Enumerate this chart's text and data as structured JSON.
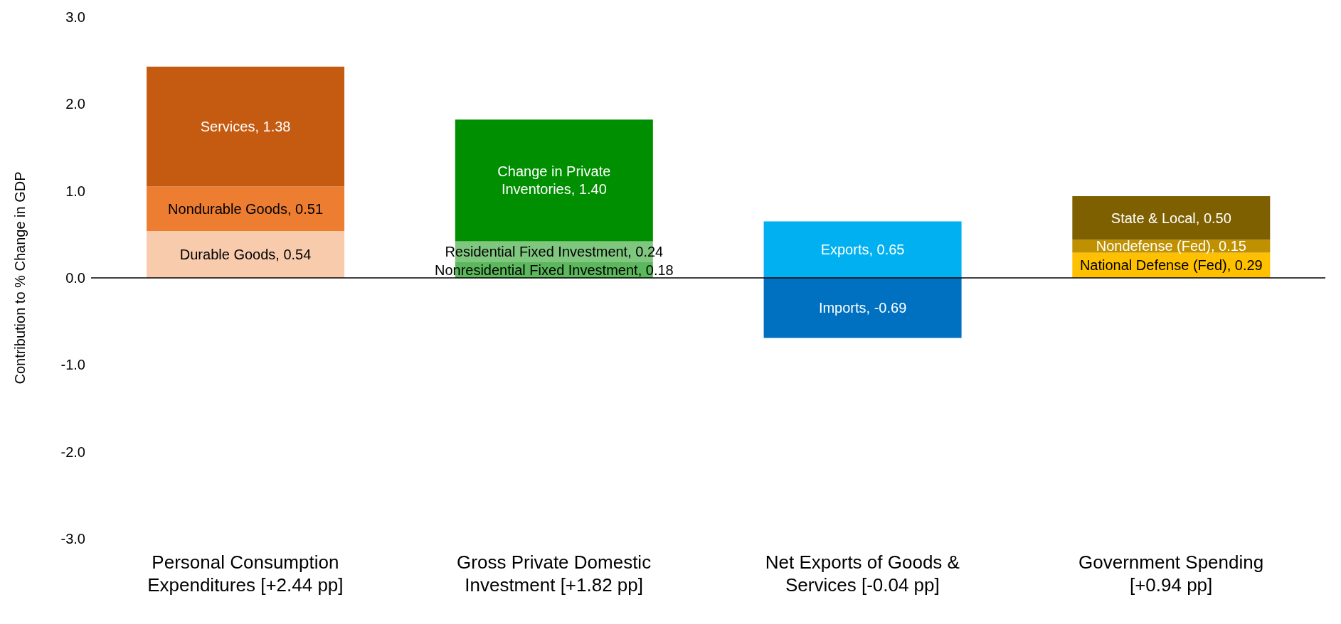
{
  "chart_data": {
    "type": "bar",
    "stacked": true,
    "ylabel": "Contribution to % Change in GDP",
    "categories": [
      "Personal Consumption Expenditures [+2.44 pp]",
      "Gross Private Domestic Investment [+1.82 pp]",
      "Net Exports of Goods & Services [-0.04 pp]",
      "Government Spending [+0.94 pp]"
    ],
    "ylim": [
      -3,
      3
    ],
    "yticks": [
      {
        "value": -3,
        "label": "-3.0"
      },
      {
        "value": -2,
        "label": "-2.0"
      },
      {
        "value": -1,
        "label": "-1.0"
      },
      {
        "value": 0,
        "label": "0.0"
      },
      {
        "value": 1,
        "label": "1.0"
      },
      {
        "value": 2,
        "label": "2.0"
      },
      {
        "value": 3,
        "label": "3.0"
      }
    ],
    "grid": false,
    "legend": false,
    "ref_lines": [
      {
        "axis": "y",
        "value": 0,
        "color": "#000000"
      }
    ],
    "series": [
      {
        "color": "#f8cbad",
        "values": [
          0.54,
          null,
          null,
          null
        ],
        "value_labels": [
          "Durable Goods, 0.54",
          null,
          null,
          null
        ]
      },
      {
        "color": "#ed7d31",
        "values": [
          0.51,
          null,
          null,
          null
        ],
        "value_labels": [
          "Nondurable Goods, 0.51",
          null,
          null,
          null
        ]
      },
      {
        "color": "#c55a11",
        "values": [
          1.38,
          null,
          null,
          null
        ],
        "value_labels": [
          "Services, 1.38",
          null,
          null,
          null
        ]
      },
      {
        "color": "#5cb85c",
        "values": [
          null,
          0.18,
          null,
          null
        ],
        "value_labels": [
          null,
          "Nonresidential Fixed Investment, 0.18",
          null,
          null
        ]
      },
      {
        "color": "#7fc67f",
        "values": [
          null,
          0.24,
          null,
          null
        ],
        "value_labels": [
          null,
          "Residential Fixed Investment, 0.24",
          null,
          null
        ]
      },
      {
        "color": "#008f00",
        "values": [
          null,
          1.4,
          null,
          null
        ],
        "value_labels": [
          null,
          "Change in Private Inventories, 1.40",
          null,
          null
        ]
      },
      {
        "color": "#00b0f0",
        "values": [
          null,
          null,
          0.65,
          null
        ],
        "value_labels": [
          null,
          null,
          "Exports, 0.65",
          null
        ]
      },
      {
        "color": "#0070c0",
        "values": [
          null,
          null,
          -0.69,
          null
        ],
        "value_labels": [
          null,
          null,
          "Imports, -0.69",
          null
        ]
      },
      {
        "color": "#ffc000",
        "values": [
          null,
          null,
          null,
          0.29
        ],
        "value_labels": [
          null,
          null,
          null,
          "National Defense (Fed), 0.29"
        ]
      },
      {
        "color": "#bf9000",
        "values": [
          null,
          null,
          null,
          0.15
        ],
        "value_labels": [
          null,
          null,
          null,
          "Nondefense (Fed), 0.15"
        ]
      },
      {
        "color": "#7f6000",
        "values": [
          null,
          null,
          null,
          0.5
        ],
        "value_labels": [
          null,
          null,
          null,
          "State & Local, 0.50"
        ]
      }
    ]
  }
}
